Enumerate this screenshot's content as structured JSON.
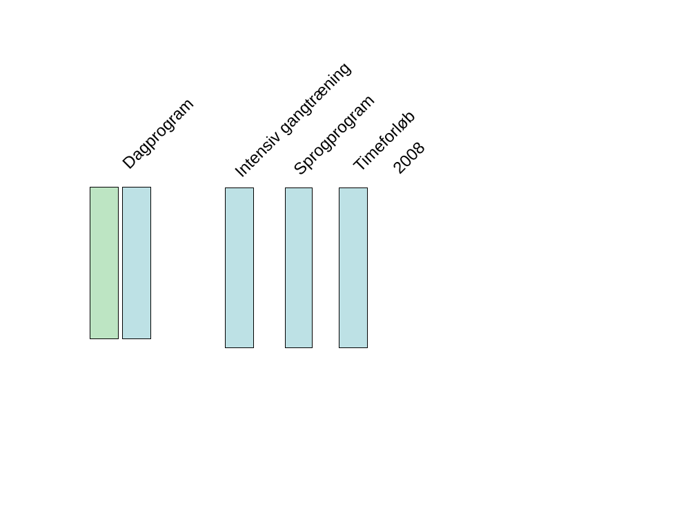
{
  "colors": {
    "green_bar": "#bde5c3",
    "blue_bar": "#bde1e5",
    "outline": "#000000"
  },
  "labels": {
    "dagprogram": "Dagprogram",
    "intensiv": "Intensiv gangtræning",
    "sprogprogram": "Sprogprogram",
    "timeforlob": "Timeforløb",
    "year": "2008"
  }
}
